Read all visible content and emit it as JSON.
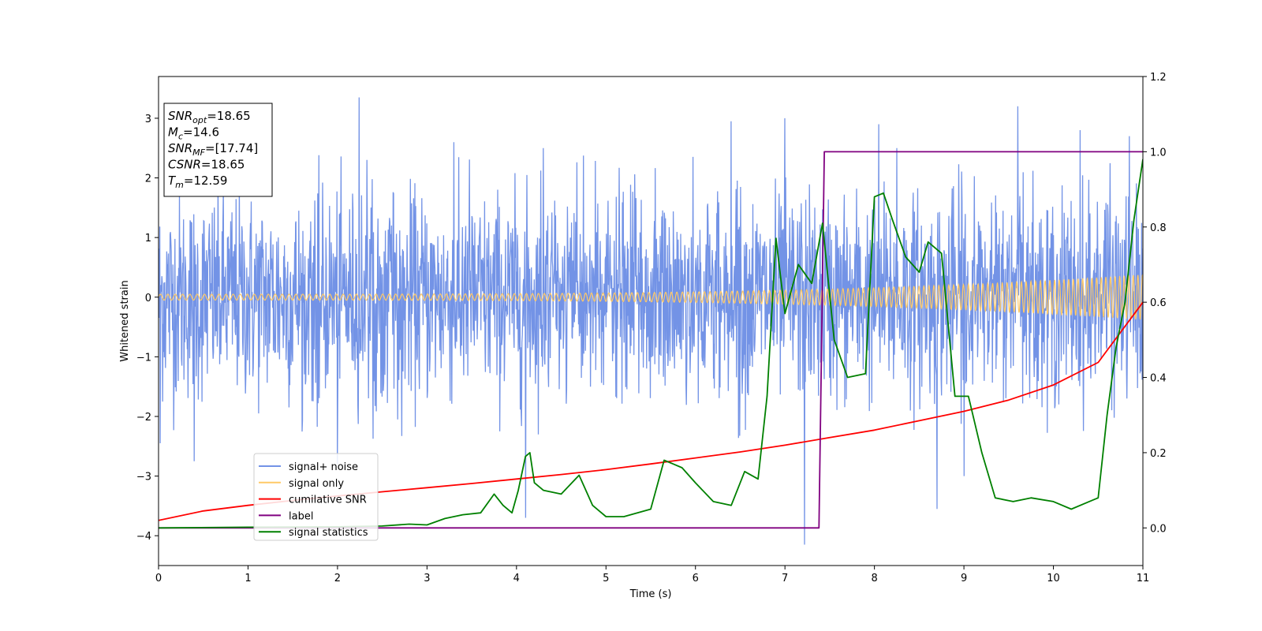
{
  "chart_data": {
    "type": "line",
    "xlabel": "Time (s)",
    "ylabel": "Whitened strain",
    "xlim": [
      0,
      11
    ],
    "ylim": [
      -4.5,
      3.7
    ],
    "y2lim": [
      -0.1,
      1.2
    ],
    "xticks": [
      "0",
      "1",
      "2",
      "3",
      "4",
      "5",
      "6",
      "7",
      "8",
      "9",
      "10",
      "11"
    ],
    "yticks": [
      "−4",
      "−3",
      "−2",
      "−1",
      "0",
      "1",
      "2",
      "3"
    ],
    "y2ticks": [
      "0.0",
      "0.2",
      "0.4",
      "0.6",
      "0.8",
      "1.0",
      "1.2"
    ],
    "grid": false,
    "legend_position": "lower-left",
    "annotation": [
      {
        "sym": "SNR",
        "sub": "opt",
        "value": "=18.65"
      },
      {
        "sym": "M",
        "sub": "c",
        "value": "=14.6"
      },
      {
        "sym": "SNR",
        "sub": "MF",
        "value": "=[17.74]"
      },
      {
        "sym": "CSNR",
        "sub": "",
        "value": "=18.65"
      },
      {
        "sym": "T",
        "sub": "m",
        "value": "=12.59"
      }
    ],
    "series": [
      {
        "name": "signal+ noise",
        "color": "#7393e6",
        "axis": "left",
        "description": "dense whitened noise, roughly between -2.5 and 2.5 with spikes",
        "envelope": {
          "x": [
            0,
            11
          ],
          "lower": -2.4,
          "upper": 2.4
        },
        "spikes": [
          [
            0.02,
            -2.45
          ],
          [
            0.4,
            -2.75
          ],
          [
            2.0,
            -2.8
          ],
          [
            2.24,
            3.35
          ],
          [
            3.3,
            2.6
          ],
          [
            4.1,
            -3.7
          ],
          [
            4.3,
            2.5
          ],
          [
            6.4,
            2.95
          ],
          [
            7.0,
            3.0
          ],
          [
            7.22,
            -4.15
          ],
          [
            8.05,
            2.9
          ],
          [
            8.25,
            2.5
          ],
          [
            8.7,
            -3.55
          ],
          [
            9.0,
            -3.0
          ],
          [
            9.6,
            3.2
          ],
          [
            10.3,
            2.8
          ],
          [
            10.85,
            2.7
          ]
        ]
      },
      {
        "name": "signal only",
        "color": "#ffc966",
        "axis": "left",
        "description": "chirp with amplitude growing from 0.05 to 0.38",
        "x": [
          0,
          11
        ],
        "amplitude": [
          0.05,
          0.38
        ]
      },
      {
        "name": "cumilative SNR",
        "color": "#ff0000",
        "axis": "right",
        "x": [
          0,
          0.5,
          1,
          1.5,
          2,
          2.5,
          3,
          3.5,
          4,
          4.5,
          5,
          5.5,
          6,
          6.5,
          7,
          7.5,
          8,
          8.5,
          9,
          9.5,
          10,
          10.5,
          11
        ],
        "values": [
          0.02,
          0.045,
          0.06,
          0.073,
          0.085,
          0.096,
          0.107,
          0.118,
          0.13,
          0.142,
          0.155,
          0.17,
          0.186,
          0.202,
          0.22,
          0.24,
          0.26,
          0.285,
          0.31,
          0.34,
          0.38,
          0.44,
          0.6
        ]
      },
      {
        "name": "label",
        "color": "#800080",
        "axis": "right",
        "x": [
          0,
          7.38,
          7.44,
          11
        ],
        "values": [
          0.0,
          0.0,
          1.0,
          1.0
        ]
      },
      {
        "name": "signal statistics",
        "color": "#008000",
        "axis": "right",
        "x": [
          0,
          1.0,
          2.0,
          2.5,
          2.8,
          3.0,
          3.2,
          3.4,
          3.6,
          3.75,
          3.85,
          3.95,
          4.02,
          4.1,
          4.15,
          4.2,
          4.3,
          4.5,
          4.7,
          4.85,
          5.0,
          5.2,
          5.5,
          5.65,
          5.75,
          5.85,
          6.0,
          6.2,
          6.4,
          6.55,
          6.7,
          6.8,
          6.9,
          7.0,
          7.15,
          7.3,
          7.42,
          7.55,
          7.7,
          7.9,
          8.0,
          8.1,
          8.2,
          8.35,
          8.5,
          8.6,
          8.75,
          8.9,
          9.05,
          9.2,
          9.35,
          9.55,
          9.75,
          10.0,
          10.2,
          10.4,
          10.5,
          10.6,
          10.7,
          10.8,
          10.9,
          11.0
        ],
        "values": [
          0.0,
          0.002,
          0.003,
          0.005,
          0.01,
          0.008,
          0.025,
          0.035,
          0.04,
          0.09,
          0.06,
          0.04,
          0.1,
          0.19,
          0.2,
          0.12,
          0.1,
          0.09,
          0.14,
          0.06,
          0.03,
          0.03,
          0.05,
          0.18,
          0.17,
          0.16,
          0.12,
          0.07,
          0.06,
          0.15,
          0.13,
          0.35,
          0.77,
          0.57,
          0.7,
          0.65,
          0.81,
          0.5,
          0.4,
          0.41,
          0.88,
          0.89,
          0.82,
          0.72,
          0.68,
          0.76,
          0.73,
          0.35,
          0.35,
          0.2,
          0.08,
          0.07,
          0.08,
          0.07,
          0.05,
          0.07,
          0.08,
          0.3,
          0.48,
          0.6,
          0.82,
          0.98
        ]
      }
    ]
  }
}
